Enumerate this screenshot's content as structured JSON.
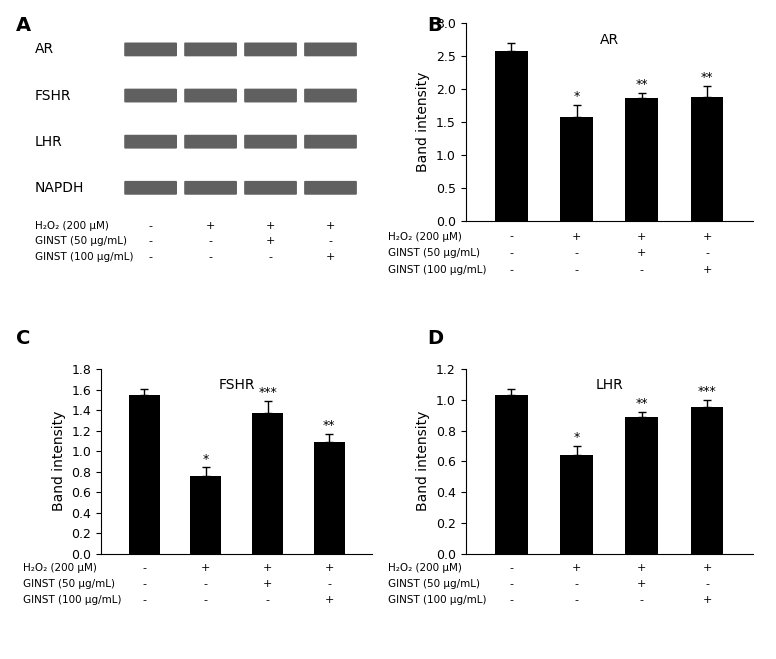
{
  "blot": {
    "panel": "A",
    "rows": [
      "AR",
      "FSHR",
      "LHR",
      "NAPDH"
    ],
    "treatments": [
      {
        "label": "H₂O₂ (200 µM)",
        "marks": [
          "-",
          "+",
          "+",
          "+"
        ]
      },
      {
        "label": "GINST (50 µg/mL)",
        "marks": [
          "-",
          "-",
          "+",
          "-"
        ]
      },
      {
        "label": "GINST (100 µg/mL)",
        "marks": [
          "-",
          "-",
          "-",
          "+"
        ]
      }
    ]
  },
  "chart_data": [
    {
      "panel": "B",
      "type": "bar",
      "title": "AR",
      "y_label": "Band intensity",
      "categories": [
        null,
        null,
        null,
        null
      ],
      "values": [
        2.58,
        1.58,
        1.86,
        1.88
      ],
      "errors": [
        0.12,
        0.18,
        0.08,
        0.16
      ],
      "significance": [
        null,
        "*",
        "**",
        "**"
      ],
      "color": "#000000",
      "ylim": [
        0,
        3.0
      ],
      "yticks": [
        {
          "value": 0,
          "label": "0.0"
        },
        {
          "value": 0.5,
          "label": "0.5"
        },
        {
          "value": 1.0,
          "label": "1.0"
        },
        {
          "value": 1.5,
          "label": "1.5"
        },
        {
          "value": 2.0,
          "label": "2.0"
        },
        {
          "value": 2.5,
          "label": "2.5"
        },
        {
          "value": 3.0,
          "label": "3.0"
        }
      ],
      "treatments": [
        {
          "label": "H₂O₂ (200 µM)",
          "marks": [
            "-",
            "+",
            "+",
            "+"
          ]
        },
        {
          "label": "GINST (50 µg/mL)",
          "marks": [
            "-",
            "-",
            "+",
            "-"
          ]
        },
        {
          "label": "GINST (100 µg/mL)",
          "marks": [
            "-",
            "-",
            "-",
            "+"
          ]
        }
      ]
    },
    {
      "panel": "C",
      "type": "bar",
      "title": "FSHR",
      "y_label": "Band intensity",
      "categories": [
        null,
        null,
        null,
        null
      ],
      "values": [
        1.55,
        0.76,
        1.37,
        1.09
      ],
      "errors": [
        0.06,
        0.08,
        0.12,
        0.08
      ],
      "significance": [
        null,
        "*",
        "***",
        "**"
      ],
      "color": "#000000",
      "ylim": [
        0,
        1.8
      ],
      "yticks": [
        {
          "value": 0,
          "label": "0.0"
        },
        {
          "value": 0.2,
          "label": "0.2"
        },
        {
          "value": 0.4,
          "label": "0.4"
        },
        {
          "value": 0.6,
          "label": "0.6"
        },
        {
          "value": 0.8,
          "label": "0.8"
        },
        {
          "value": 1.0,
          "label": "1.0"
        },
        {
          "value": 1.2,
          "label": "1.2"
        },
        {
          "value": 1.4,
          "label": "1.4"
        },
        {
          "value": 1.6,
          "label": "1.6"
        },
        {
          "value": 1.8,
          "label": "1.8"
        }
      ],
      "treatments": [
        {
          "label": "H₂O₂ (200 µM)",
          "marks": [
            "-",
            "+",
            "+",
            "+"
          ]
        },
        {
          "label": "GINST (50 µg/mL)",
          "marks": [
            "-",
            "-",
            "+",
            "-"
          ]
        },
        {
          "label": "GINST (100 µg/mL)",
          "marks": [
            "-",
            "-",
            "-",
            "+"
          ]
        }
      ]
    },
    {
      "panel": "D",
      "type": "bar",
      "title": "LHR",
      "y_label": "Band intensity",
      "categories": [
        null,
        null,
        null,
        null
      ],
      "values": [
        1.03,
        0.64,
        0.89,
        0.95
      ],
      "errors": [
        0.04,
        0.06,
        0.03,
        0.05
      ],
      "significance": [
        null,
        "*",
        "**",
        "***"
      ],
      "color": "#000000",
      "ylim": [
        0,
        1.2
      ],
      "yticks": [
        {
          "value": 0,
          "label": "0.0"
        },
        {
          "value": 0.2,
          "label": "0.2"
        },
        {
          "value": 0.4,
          "label": "0.4"
        },
        {
          "value": 0.6,
          "label": "0.6"
        },
        {
          "value": 0.8,
          "label": "0.8"
        },
        {
          "value": 1.0,
          "label": "1.0"
        },
        {
          "value": 1.2,
          "label": "1.2"
        }
      ],
      "treatments": [
        {
          "label": "H₂O₂ (200 µM)",
          "marks": [
            "-",
            "+",
            "+",
            "+"
          ]
        },
        {
          "label": "GINST (50 µg/mL)",
          "marks": [
            "-",
            "-",
            "+",
            "-"
          ]
        },
        {
          "label": "GINST (100 µg/mL)",
          "marks": [
            "-",
            "-",
            "-",
            "+"
          ]
        }
      ]
    }
  ]
}
